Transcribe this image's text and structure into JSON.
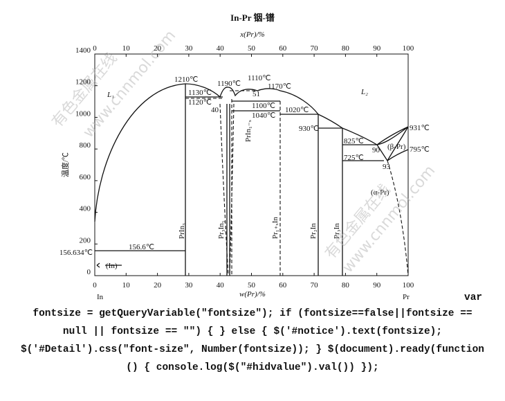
{
  "title": "In-Pr  铟-镨",
  "axes": {
    "top": {
      "label": "x(Pr)/%",
      "ticks": [
        0,
        10,
        20,
        30,
        40,
        50,
        60,
        70,
        80,
        90,
        100
      ]
    },
    "bottom": {
      "label": "w(Pr)/%",
      "ticks": [
        0,
        10,
        20,
        30,
        40,
        50,
        60,
        70,
        80,
        90,
        100
      ],
      "left_end": "In",
      "right_end": "Pr"
    },
    "left": {
      "label": "温度/℃",
      "ticks": [
        0,
        200,
        400,
        600,
        800,
        1000,
        1200,
        1400
      ]
    }
  },
  "labels": [
    "1210℃",
    "1190℃",
    "1110℃",
    "1130℃",
    "51",
    "1170℃",
    "1120℃",
    "40",
    "1100℃",
    "1040℃",
    "1020℃",
    "930℃",
    "825℃",
    "90",
    "931℃",
    "(β-Pr)",
    "795℃",
    "725℃",
    "93",
    "(α-Pr)",
    "L₁",
    "L₂",
    "156.6℃",
    "156.634℃",
    "(In)"
  ],
  "phases": [
    "PrIn₃",
    "Pr₃In₅",
    "PrIn₁₋ₓ",
    "Pr₁₊ₓIn",
    "Pr₂In",
    "Pr₃In"
  ],
  "watermark": {
    "name": "有色金属在线",
    "url": "www.cnnmol.com"
  },
  "code": [
    "var",
    "fontsize = getQueryVariable(\"fontsize\"); if (fontsize==false||fontsize ==",
    "null || fontsize == \"\") { } else { $('#notice').text(fontsize);",
    "$('#Detail').css(\"font-size\", Number(fontsize)); } $(document).ready(function",
    "() { console.log($(\"#hidvalue\").val()) });"
  ]
}
